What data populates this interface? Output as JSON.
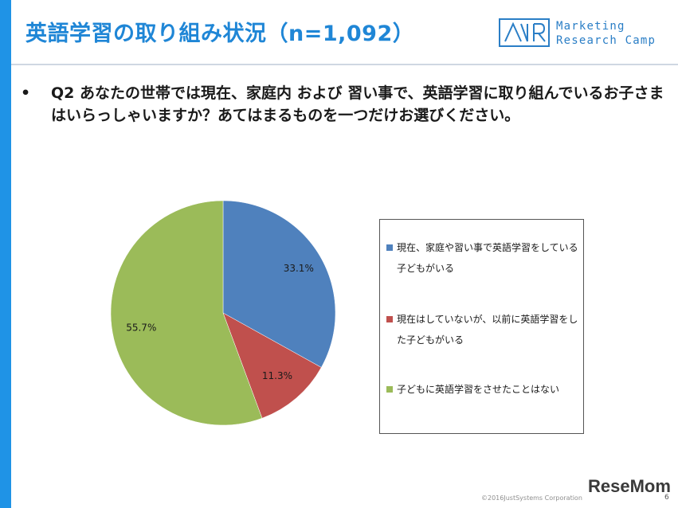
{
  "header": {
    "title": "英語学習の取り組み状況（n=1,092）",
    "logo": {
      "name": "Marketing Research Camp logo",
      "line1": "Marketing",
      "line2": "Research Camp",
      "color": "#2a7ec6"
    }
  },
  "question": {
    "bullet": "•",
    "text": "Q2 あなたの世帯では現在、家庭内 および 習い事で、英語学習に取り組んでいるお子さまはいらっしゃいますか？あてはまるものを一つだけお選びください。"
  },
  "chart_data": {
    "type": "pie",
    "title": "",
    "labels": [
      "現在、家庭や習い事で英語学習をしている子どもがいる",
      "現在はしていないが、以前に英語学習をした子どもがいる",
      "子どもに英語学習をさせたことはない"
    ],
    "values": [
      33.1,
      11.3,
      55.7
    ],
    "value_labels": [
      "33.1%",
      "11.3%",
      "55.7%"
    ],
    "colors": [
      "#4f81bd",
      "#c0504d",
      "#9bbb59"
    ],
    "legend": "right",
    "start_angle_deg": 0,
    "direction": "clockwise"
  },
  "footer": {
    "copyright": "©2016JustSystems Corporation",
    "page": "6",
    "watermark": "ReseMom"
  }
}
